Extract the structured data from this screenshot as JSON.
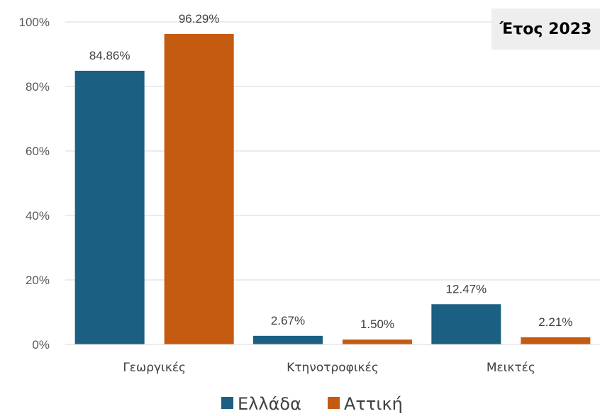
{
  "badge": {
    "text": "Έτος 2023"
  },
  "chart_data": {
    "type": "bar",
    "title": "",
    "xlabel": "",
    "ylabel": "",
    "categories": [
      "Γεωργικές",
      "Κτηνοτροφικές",
      "Μεικτές"
    ],
    "series": [
      {
        "name": "Ελλάδα",
        "values": [
          84.86,
          2.67,
          12.47
        ],
        "labels": [
          "84.86%",
          "2.67%",
          "12.47%"
        ],
        "color": "#1b5f82"
      },
      {
        "name": "Αττική",
        "values": [
          96.29,
          1.5,
          2.21
        ],
        "labels": [
          "96.29%",
          "1.50%",
          "2.21%"
        ],
        "color": "#c55a11"
      }
    ],
    "ylim": [
      0,
      100
    ],
    "yticks": [
      0,
      20,
      40,
      60,
      80,
      100
    ],
    "ytick_labels": [
      "0%",
      "20%",
      "40%",
      "60%",
      "80%",
      "100%"
    ],
    "grid": true,
    "gridline_color": "#d9d9d9",
    "legend_position": "bottom"
  }
}
